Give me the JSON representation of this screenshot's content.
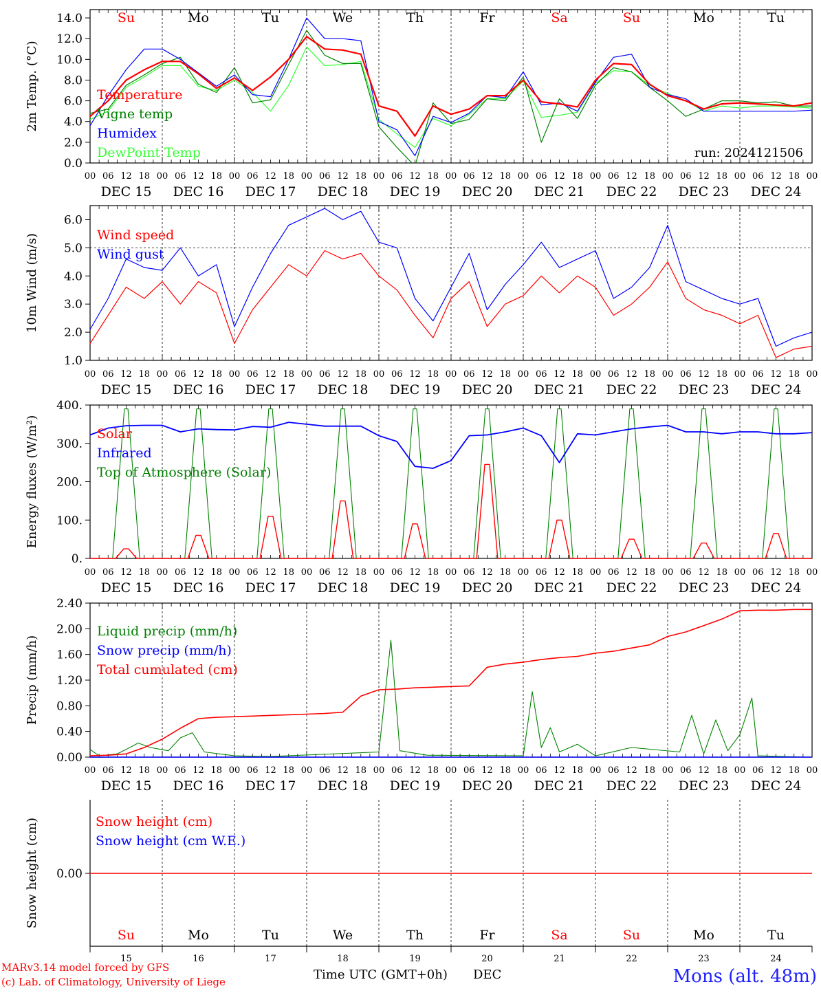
{
  "days": [
    "Su",
    "Mo",
    "Tu",
    "We",
    "Th",
    "Fr",
    "Sa",
    "Su",
    "Mo",
    "Tu"
  ],
  "weekend_day_flags": [
    true,
    false,
    false,
    false,
    false,
    false,
    true,
    true,
    false,
    false
  ],
  "dates": [
    "DEC 15",
    "DEC 16",
    "DEC 17",
    "DEC 18",
    "DEC 19",
    "DEC 20",
    "DEC 21",
    "DEC 22",
    "DEC 23",
    "DEC 24"
  ],
  "day_numbers": [
    "15",
    "16",
    "17",
    "18",
    "19",
    "20",
    "21",
    "22",
    "23",
    "24"
  ],
  "hour_ticks": [
    "00",
    "06",
    "12",
    "18"
  ],
  "final_tick": "00",
  "colors": {
    "red": "#ff0000",
    "blue": "#0000ff",
    "green": "#008000",
    "lightgreen": "#33ff33",
    "axis": "#000000"
  },
  "footer": {
    "model": "MARv3.14 model forced by GFS",
    "credit": "(c) Lab. of Climatology, University of Liege",
    "xlabel": "Time UTC (GMT+0h)",
    "month": "DEC",
    "station": "Mons (alt. 48m)"
  },
  "chart_data": [
    {
      "type": "line",
      "name": "temperature",
      "ylabel": "2m Temp. (°C)",
      "ylim": [
        0,
        14.8
      ],
      "yticks": [
        "0.0",
        "2.0",
        "4.0",
        "6.0",
        "8.0",
        "10.0",
        "12.0",
        "14.0"
      ],
      "run_label": "run: 2024121506",
      "x_unit": "hours since DEC 15 00 UTC",
      "x": [
        0,
        6,
        12,
        18,
        24,
        30,
        36,
        42,
        48,
        54,
        60,
        66,
        72,
        78,
        84,
        90,
        96,
        102,
        108,
        114,
        120,
        126,
        132,
        138,
        144,
        150,
        156,
        162,
        168,
        174,
        180,
        186,
        192,
        198,
        204,
        210,
        216,
        222,
        228,
        234,
        240
      ],
      "series": [
        {
          "name": "Temperature",
          "color": "#ff0000",
          "values": [
            4.5,
            6.0,
            8.0,
            9.0,
            9.8,
            9.8,
            8.6,
            7.2,
            8.2,
            7.0,
            8.3,
            10.0,
            12.2,
            11.0,
            10.9,
            10.5,
            5.5,
            5.0,
            2.6,
            5.5,
            4.7,
            5.2,
            6.5,
            6.5,
            8.0,
            5.9,
            5.7,
            5.4,
            8.0,
            9.6,
            9.5,
            7.6,
            6.5,
            6.0,
            5.2,
            5.7,
            5.8,
            5.7,
            5.6,
            5.5,
            5.8
          ]
        },
        {
          "name": "Vigne temp",
          "color": "#008000",
          "values": [
            4.8,
            5.2,
            7.5,
            8.5,
            9.6,
            10.2,
            7.6,
            6.8,
            9.2,
            5.8,
            6.1,
            9.5,
            12.8,
            10.4,
            9.6,
            9.6,
            3.5,
            1.5,
            -0.3,
            5.8,
            3.8,
            4.2,
            6.2,
            6.0,
            8.3,
            2.0,
            6.2,
            4.3,
            7.5,
            9.2,
            8.8,
            7.3,
            6.0,
            4.5,
            5.2,
            6.0,
            6.0,
            5.8,
            5.9,
            5.5,
            5.5
          ]
        },
        {
          "name": "Humidex",
          "color": "#0000ff",
          "values": [
            3.6,
            6.5,
            9.0,
            11.0,
            11.0,
            10.0,
            8.7,
            7.4,
            8.5,
            6.6,
            6.4,
            10.0,
            14.0,
            12.0,
            12.0,
            11.8,
            4.0,
            3.2,
            0.7,
            4.5,
            3.9,
            4.8,
            6.5,
            6.3,
            8.8,
            5.6,
            5.8,
            5.0,
            7.8,
            10.2,
            10.5,
            7.3,
            6.6,
            6.2,
            5.0,
            5.0,
            5.0,
            5.0,
            5.0,
            5.0,
            5.1
          ]
        },
        {
          "name": "DewPoint Temp",
          "color": "#33ff33",
          "values": [
            4.2,
            5.0,
            7.3,
            8.3,
            9.4,
            9.4,
            7.4,
            7.0,
            8.0,
            6.8,
            5.0,
            7.5,
            11.2,
            9.4,
            9.5,
            9.8,
            4.2,
            2.8,
            1.5,
            4.3,
            3.6,
            4.7,
            6.2,
            6.2,
            7.9,
            4.4,
            4.6,
            4.9,
            7.7,
            8.9,
            8.8,
            7.5,
            6.7,
            6.0,
            5.0,
            5.5,
            5.3,
            5.5,
            5.5,
            5.4,
            5.3
          ]
        }
      ]
    },
    {
      "type": "line",
      "name": "wind",
      "ylabel": "10m Wind (m/s)",
      "ylim": [
        1.0,
        6.5
      ],
      "yticks": [
        "1.0",
        "2.0",
        "3.0",
        "4.0",
        "5.0",
        "6.0"
      ],
      "reference_line": 5.0,
      "x_unit": "hours since DEC 15 00 UTC",
      "x": [
        0,
        6,
        12,
        18,
        24,
        30,
        36,
        42,
        48,
        54,
        60,
        66,
        72,
        78,
        84,
        90,
        96,
        102,
        108,
        114,
        120,
        126,
        132,
        138,
        144,
        150,
        156,
        162,
        168,
        174,
        180,
        186,
        192,
        198,
        204,
        210,
        216,
        222,
        228,
        234,
        240
      ],
      "series": [
        {
          "name": "Wind speed",
          "color": "#ff0000",
          "values": [
            1.6,
            2.6,
            3.6,
            3.2,
            3.8,
            3.0,
            3.8,
            3.4,
            1.6,
            2.8,
            3.6,
            4.4,
            4.0,
            4.9,
            4.6,
            4.8,
            4.0,
            3.5,
            2.6,
            1.8,
            3.2,
            3.8,
            2.2,
            3.0,
            3.3,
            4.0,
            3.4,
            4.0,
            3.6,
            2.6,
            3.0,
            3.6,
            4.5,
            3.2,
            2.8,
            2.6,
            2.3,
            2.6,
            1.1,
            1.4,
            1.5
          ]
        },
        {
          "name": "Wind gust",
          "color": "#0000ff",
          "values": [
            2.1,
            3.2,
            4.6,
            4.3,
            4.2,
            5.0,
            4.0,
            4.4,
            2.2,
            3.6,
            4.8,
            5.8,
            6.1,
            6.4,
            6.0,
            6.3,
            5.2,
            5.0,
            3.2,
            2.4,
            3.6,
            4.8,
            2.8,
            3.7,
            4.4,
            5.2,
            4.3,
            4.6,
            4.9,
            3.2,
            3.6,
            4.3,
            5.8,
            3.8,
            3.5,
            3.2,
            3.0,
            3.2,
            1.5,
            1.8,
            2.0
          ]
        }
      ]
    },
    {
      "type": "line",
      "name": "energy",
      "ylabel": "Energy fluxes (W/m²)",
      "ylim": [
        0,
        400
      ],
      "yticks": [
        "0.",
        "100.",
        "200.",
        "300.",
        "400."
      ],
      "x_unit": "hours since DEC 15 00 UTC",
      "infrared_x": [
        0,
        6,
        12,
        18,
        24,
        30,
        36,
        42,
        48,
        54,
        60,
        66,
        72,
        78,
        84,
        90,
        96,
        102,
        108,
        114,
        120,
        126,
        132,
        138,
        144,
        150,
        156,
        162,
        168,
        174,
        180,
        186,
        192,
        198,
        204,
        210,
        216,
        222,
        228,
        234,
        240
      ],
      "series": [
        {
          "name": "Solar",
          "color": "#ff0000",
          "daily_peaks": [
            25,
            60,
            110,
            150,
            90,
            245,
            100,
            50,
            40,
            65
          ]
        },
        {
          "name": "Infrared",
          "color": "#0000ff",
          "values": [
            322,
            340,
            346,
            347,
            347,
            330,
            338,
            336,
            335,
            344,
            342,
            355,
            350,
            345,
            345,
            345,
            320,
            305,
            240,
            235,
            255,
            320,
            322,
            330,
            340,
            320,
            250,
            325,
            322,
            330,
            338,
            343,
            347,
            330,
            330,
            325,
            330,
            330,
            325,
            325,
            328
          ]
        },
        {
          "name": "Top of Atmosphere (Solar)",
          "color": "#008000",
          "daily_peaks": [
            390,
            390,
            390,
            390,
            390,
            390,
            390,
            390,
            390,
            390
          ]
        }
      ]
    },
    {
      "type": "line",
      "name": "precip",
      "ylabel": "Precip (mm/h)",
      "ylim": [
        0,
        2.4
      ],
      "yticks": [
        "0.00",
        "0.40",
        "0.80",
        "1.20",
        "1.60",
        "2.00",
        "2.40"
      ],
      "x_unit": "hours since DEC 15 00 UTC",
      "cumulated_x": [
        0,
        6,
        12,
        18,
        24,
        30,
        36,
        42,
        48,
        54,
        60,
        66,
        72,
        78,
        84,
        90,
        96,
        102,
        108,
        114,
        120,
        126,
        132,
        138,
        144,
        150,
        156,
        162,
        168,
        174,
        180,
        186,
        192,
        198,
        204,
        210,
        216,
        222,
        228,
        234,
        240
      ],
      "series": [
        {
          "name": "Liquid precip (mm/h)",
          "color": "#008000",
          "points": [
            [
              0,
              0.12
            ],
            [
              3,
              0.02
            ],
            [
              9,
              0.05
            ],
            [
              12,
              0.12
            ],
            [
              16,
              0.22
            ],
            [
              20,
              0.15
            ],
            [
              26,
              0.1
            ],
            [
              30,
              0.3
            ],
            [
              34,
              0.38
            ],
            [
              38,
              0.08
            ],
            [
              48,
              0.02
            ],
            [
              60,
              0.01
            ],
            [
              96,
              0.08
            ],
            [
              100,
              1.82
            ],
            [
              103,
              0.1
            ],
            [
              112,
              0.03
            ],
            [
              144,
              0.02
            ],
            [
              147,
              1.02
            ],
            [
              150,
              0.15
            ],
            [
              153,
              0.46
            ],
            [
              156,
              0.08
            ],
            [
              162,
              0.2
            ],
            [
              168,
              0.02
            ],
            [
              180,
              0.15
            ],
            [
              196,
              0.08
            ],
            [
              200,
              0.65
            ],
            [
              204,
              0.05
            ],
            [
              208,
              0.58
            ],
            [
              212,
              0.1
            ],
            [
              216,
              0.35
            ],
            [
              220,
              0.92
            ],
            [
              222,
              0.02
            ],
            [
              230,
              0.01
            ],
            [
              240,
              0.0
            ]
          ]
        },
        {
          "name": "Snow precip (mm/h)",
          "color": "#0000ff",
          "values": [
            0
          ]
        },
        {
          "name": "Total cumulated (cm)",
          "color": "#ff0000",
          "values": [
            0.02,
            0.03,
            0.05,
            0.15,
            0.28,
            0.45,
            0.6,
            0.62,
            0.63,
            0.64,
            0.65,
            0.66,
            0.67,
            0.68,
            0.7,
            0.95,
            1.05,
            1.06,
            1.08,
            1.09,
            1.1,
            1.11,
            1.4,
            1.45,
            1.48,
            1.52,
            1.55,
            1.57,
            1.62,
            1.65,
            1.7,
            1.75,
            1.88,
            1.95,
            2.05,
            2.15,
            2.28,
            2.29,
            2.29,
            2.3,
            2.3
          ]
        }
      ]
    },
    {
      "type": "line",
      "name": "snow",
      "ylabel": "Snow height (cm)",
      "ytick": "0.00",
      "series": [
        {
          "name": "Snow height (cm)",
          "color": "#ff0000",
          "values": [
            0.0,
            0.0
          ]
        },
        {
          "name": "Snow height (cm W.E.)",
          "color": "#0000ff",
          "values": [
            0.0,
            0.0
          ]
        }
      ]
    }
  ]
}
